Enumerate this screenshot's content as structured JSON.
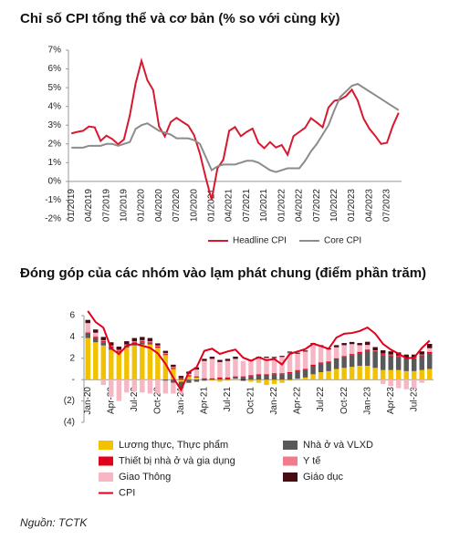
{
  "chart_data": [
    {
      "type": "line",
      "title": "Chỉ số CPI tổng thể và cơ bản (% so với cùng kỳ)",
      "categories": [
        "01/2019",
        null,
        null,
        "04/2019",
        null,
        null,
        "07/2019",
        null,
        null,
        "10/2019",
        null,
        null,
        "01/2020",
        null,
        null,
        "04/2020",
        null,
        null,
        "07/2020",
        null,
        null,
        "10/2020",
        null,
        null,
        "01/2021",
        null,
        null,
        "04/2021",
        null,
        null,
        "07/2021",
        null,
        null,
        "10/2021",
        null,
        null,
        "01/2022",
        null,
        null,
        "04/2022",
        null,
        null,
        "07/2022",
        null,
        null,
        "10/2022",
        null,
        null,
        "01/2023",
        null,
        null,
        "04/2023",
        null,
        null,
        "07/2023",
        null,
        null
      ],
      "series": [
        {
          "name": "Headline CPI",
          "color": "#d7192f",
          "values": [
            2.56,
            2.64,
            2.7,
            2.93,
            2.88,
            2.16,
            2.44,
            2.26,
            1.98,
            2.24,
            3.52,
            5.23,
            6.43,
            5.4,
            4.87,
            2.93,
            2.4,
            3.17,
            3.39,
            3.18,
            2.98,
            2.47,
            1.48,
            0.19,
            -0.97,
            0.7,
            1.16,
            2.7,
            2.9,
            2.41,
            2.64,
            2.82,
            2.06,
            1.77,
            2.1,
            1.81,
            1.94,
            1.42,
            2.41,
            2.64,
            2.86,
            3.37,
            3.14,
            2.89,
            3.94,
            4.3,
            4.37,
            4.55,
            4.89,
            4.31,
            3.35,
            2.81,
            2.43,
            2.0,
            2.06,
            2.96,
            3.66
          ]
        },
        {
          "name": "Core CPI",
          "color": "#8c8c8c",
          "values": [
            1.8,
            1.8,
            1.8,
            1.9,
            1.9,
            1.9,
            2.0,
            2.0,
            1.9,
            2.0,
            2.1,
            2.8,
            3.0,
            3.1,
            2.9,
            2.7,
            2.6,
            2.5,
            2.3,
            2.3,
            2.3,
            2.2,
            2.0,
            1.3,
            0.6,
            0.8,
            0.9,
            0.9,
            0.9,
            1.0,
            1.1,
            1.1,
            1.0,
            0.8,
            0.6,
            0.5,
            0.6,
            0.7,
            0.7,
            0.7,
            1.1,
            1.6,
            2.0,
            2.5,
            3.0,
            3.8,
            4.5,
            4.8,
            5.1,
            5.2,
            5.0,
            4.8,
            4.6,
            4.4,
            4.2,
            4.0,
            3.8
          ]
        }
      ],
      "ylim": [
        -2,
        7
      ],
      "yticks": [
        {
          "value": -2,
          "label": "-2%"
        },
        {
          "value": -1,
          "label": "-1%"
        },
        {
          "value": 0,
          "label": "0%"
        },
        {
          "value": 1,
          "label": "1%"
        },
        {
          "value": 2,
          "label": "2%"
        },
        {
          "value": 3,
          "label": "3%"
        },
        {
          "value": 4,
          "label": "4%"
        },
        {
          "value": 5,
          "label": "5%"
        },
        {
          "value": 6,
          "label": "6%"
        },
        {
          "value": 7,
          "label": "7%"
        }
      ],
      "legend": "bottom"
    },
    {
      "type": "bar",
      "stacked": true,
      "title": "Đóng góp của các nhóm vào lạm phát chung (điểm phần trăm)",
      "categories": [
        "Jan-20",
        null,
        null,
        "Apr-20",
        null,
        null,
        "Jul-20",
        null,
        null,
        "Oct-20",
        null,
        null,
        "Jan-21",
        null,
        null,
        "Apr-21",
        null,
        null,
        "Jul-21",
        null,
        null,
        "Oct-21",
        null,
        null,
        "Jan-22",
        null,
        null,
        "Apr-22",
        null,
        null,
        "Jul-22",
        null,
        null,
        "Oct-22",
        null,
        null,
        "Jan-23",
        null,
        null,
        "Apr-23",
        null,
        null,
        "Jul-23",
        null,
        null
      ],
      "series": [
        {
          "name": "Lương thực, Thực phẩm",
          "color": "#f2c200",
          "values": [
            3.9,
            3.5,
            3.2,
            2.8,
            2.6,
            3.0,
            3.2,
            3.3,
            3.3,
            3.0,
            2.3,
            1.0,
            -0.2,
            0.3,
            0.2,
            0.0,
            -0.1,
            -0.2,
            -0.1,
            0.1,
            0.0,
            -0.2,
            -0.3,
            -0.5,
            -0.4,
            -0.3,
            -0.1,
            0.1,
            0.2,
            0.5,
            0.7,
            0.8,
            1.0,
            1.1,
            1.2,
            1.3,
            1.3,
            1.1,
            0.9,
            0.9,
            0.9,
            0.8,
            0.8,
            0.9,
            1.0
          ]
        },
        {
          "name": "Nhà ở và VLXD",
          "color": "#595959",
          "values": [
            0.4,
            0.4,
            0.3,
            0.2,
            0.0,
            0.1,
            0.2,
            0.2,
            0.1,
            0.0,
            -0.1,
            -0.3,
            -0.6,
            -0.3,
            -0.2,
            -0.1,
            0.0,
            0.1,
            0.1,
            0.1,
            0.2,
            0.3,
            0.4,
            0.4,
            0.5,
            0.5,
            0.6,
            0.7,
            0.7,
            0.8,
            0.8,
            0.8,
            0.9,
            1.0,
            1.1,
            1.2,
            1.4,
            1.5,
            1.4,
            1.3,
            1.2,
            1.1,
            1.1,
            1.3,
            1.5
          ]
        },
        {
          "name": "Thiết bị nhà ở và gia dụng",
          "color": "#e3001b",
          "values": [
            0.1,
            0.1,
            0.1,
            0.1,
            0.1,
            0.1,
            0.1,
            0.1,
            0.1,
            0.1,
            0.1,
            0.1,
            0.1,
            0.1,
            0.1,
            0.1,
            0.1,
            0.1,
            0.1,
            0.1,
            0.1,
            0.1,
            0.1,
            0.1,
            0.1,
            0.1,
            0.1,
            0.1,
            0.1,
            0.1,
            0.1,
            0.1,
            0.1,
            0.1,
            0.1,
            0.1,
            0.1,
            0.1,
            0.1,
            0.1,
            0.1,
            0.1,
            0.1,
            0.1,
            0.1
          ]
        },
        {
          "name": "Y tế",
          "color": "#f27a8c",
          "values": [
            0.1,
            0.1,
            0.1,
            0.1,
            0.1,
            0.1,
            0.1,
            0.1,
            0.1,
            0.1,
            0.1,
            0.1,
            0.05,
            0.05,
            0.05,
            0.05,
            0.05,
            0.05,
            0.05,
            0.05,
            0.05,
            0.05,
            0.05,
            0.05,
            0.03,
            0.03,
            0.03,
            0.03,
            0.03,
            0.03,
            0.03,
            0.03,
            0.03,
            0.03,
            0.03,
            0.03,
            0.05,
            0.05,
            0.05,
            0.05,
            0.05,
            0.05,
            0.05,
            0.05,
            0.05
          ]
        },
        {
          "name": "Giao Thông",
          "color": "#f6b6c4",
          "values": [
            0.8,
            0.3,
            -0.5,
            -1.6,
            -2.0,
            -1.2,
            -1.1,
            -1.2,
            -1.3,
            -1.3,
            -1.2,
            -1.0,
            -0.5,
            0.1,
            0.6,
            1.6,
            1.8,
            1.4,
            1.5,
            1.6,
            1.4,
            1.3,
            1.5,
            1.5,
            1.4,
            1.5,
            1.8,
            1.5,
            1.6,
            1.9,
            1.5,
            1.1,
            1.0,
            1.0,
            0.9,
            0.6,
            0.4,
            0.0,
            -0.4,
            -0.6,
            -0.8,
            -0.9,
            -0.8,
            -0.3,
            0.3
          ]
        },
        {
          "name": "Giáo dục",
          "color": "#4a0a12",
          "values": [
            0.3,
            0.3,
            0.3,
            0.3,
            0.3,
            0.3,
            0.3,
            0.3,
            0.3,
            0.2,
            0.2,
            0.2,
            0.2,
            0.2,
            0.2,
            0.2,
            0.2,
            0.2,
            0.2,
            0.2,
            -0.1,
            0.1,
            0.1,
            0.1,
            0.1,
            0.1,
            0.1,
            0.1,
            0.1,
            0.1,
            0.1,
            0.1,
            0.2,
            0.2,
            0.2,
            0.2,
            0.3,
            0.3,
            0.3,
            0.3,
            0.3,
            0.3,
            0.3,
            0.3,
            0.4
          ]
        },
        {
          "name": "CPI",
          "color": "#e3001b",
          "type": "line",
          "values": [
            6.43,
            5.4,
            4.87,
            2.93,
            2.4,
            3.17,
            3.39,
            3.18,
            2.98,
            2.47,
            1.48,
            0.19,
            -0.97,
            0.7,
            1.16,
            2.7,
            2.9,
            2.41,
            2.64,
            2.82,
            2.06,
            1.77,
            2.1,
            1.81,
            1.94,
            1.42,
            2.41,
            2.64,
            2.86,
            3.37,
            3.14,
            2.89,
            3.94,
            4.3,
            4.37,
            4.55,
            4.89,
            4.31,
            3.35,
            2.81,
            2.43,
            2.0,
            2.06,
            2.96,
            3.66
          ]
        }
      ],
      "ylim": [
        -4,
        6
      ],
      "yticks": [
        {
          "value": -4,
          "label": "(4)"
        },
        {
          "value": -2,
          "label": "(2)"
        },
        {
          "value": 0,
          "label": "-"
        },
        2,
        4,
        6
      ],
      "legend": "bottom"
    }
  ],
  "source": "Nguồn: TCTK"
}
